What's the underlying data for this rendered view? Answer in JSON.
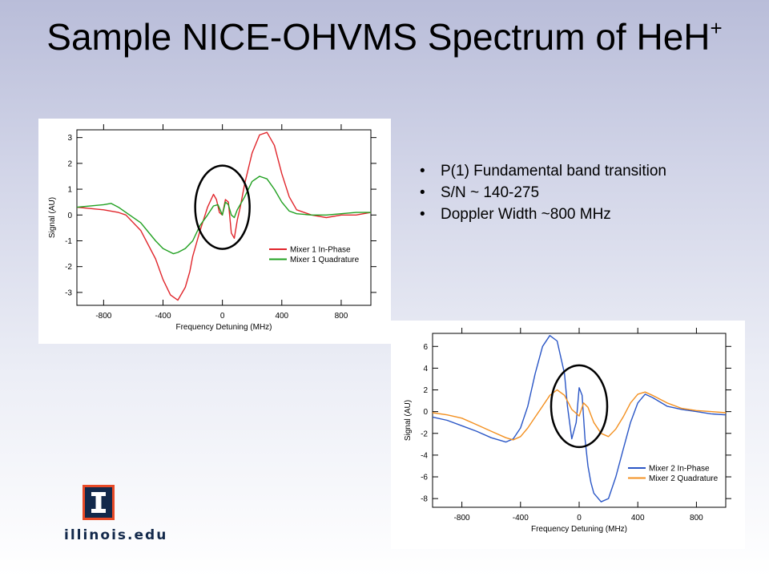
{
  "slide": {
    "title_main": "Sample NICE-OHVMS Spectrum of HeH",
    "title_sup": "+",
    "bullets": [
      "P(1) Fundamental band transition",
      "S/N ~ 140-275",
      "Doppler Width ~800 MHz"
    ],
    "logo_text": "illinois.edu",
    "logo_icon": "block-i-logo"
  },
  "chart_data": [
    {
      "type": "line",
      "xlabel": "Frequency Detuning (MHz)",
      "ylabel": "Signal (AU)",
      "xlim": [
        -980,
        1000
      ],
      "ylim": [
        -3.5,
        3.3
      ],
      "xticks": [
        -800,
        -400,
        0,
        400,
        800
      ],
      "yticks": [
        -3,
        -2,
        -1,
        0,
        1,
        2,
        3
      ],
      "legend_position": "bottom-right",
      "annotation": "circle-around-center-feature",
      "series": [
        {
          "name": "Mixer 1 In-Phase",
          "color": "#e0252b",
          "x": [
            -980,
            -800,
            -700,
            -650,
            -550,
            -450,
            -400,
            -350,
            -300,
            -250,
            -220,
            -200,
            -150,
            -100,
            -60,
            -40,
            -20,
            0,
            20,
            40,
            60,
            80,
            100,
            120,
            150,
            200,
            250,
            300,
            350,
            400,
            450,
            500,
            600,
            700,
            800,
            900,
            1000
          ],
          "y": [
            0.3,
            0.2,
            0.1,
            0.0,
            -0.6,
            -1.7,
            -2.5,
            -3.1,
            -3.3,
            -2.8,
            -2.2,
            -1.6,
            -0.6,
            0.3,
            0.8,
            0.6,
            0.1,
            0.0,
            0.6,
            0.5,
            -0.7,
            -0.9,
            -0.2,
            0.3,
            1.2,
            2.4,
            3.1,
            3.2,
            2.7,
            1.6,
            0.7,
            0.2,
            0.0,
            -0.1,
            0.0,
            0.0,
            0.1
          ]
        },
        {
          "name": "Mixer 1 Quadrature",
          "color": "#20a020",
          "x": [
            -980,
            -800,
            -750,
            -700,
            -650,
            -550,
            -450,
            -400,
            -330,
            -300,
            -250,
            -200,
            -150,
            -100,
            -60,
            -30,
            0,
            20,
            40,
            60,
            80,
            100,
            150,
            200,
            250,
            300,
            350,
            400,
            450,
            500,
            600,
            700,
            800,
            900,
            1000
          ],
          "y": [
            0.3,
            0.4,
            0.45,
            0.3,
            0.1,
            -0.3,
            -1.0,
            -1.3,
            -1.5,
            -1.45,
            -1.3,
            -1.0,
            -0.4,
            0.0,
            0.35,
            0.4,
            0.0,
            0.5,
            0.4,
            0.0,
            -0.1,
            0.2,
            0.7,
            1.3,
            1.5,
            1.4,
            1.0,
            0.5,
            0.15,
            0.05,
            0.0,
            0.0,
            0.05,
            0.1,
            0.1
          ]
        }
      ]
    },
    {
      "type": "line",
      "xlabel": "Frequency Detuning (MHz)",
      "ylabel": "Signal (AU)",
      "xlim": [
        -1000,
        1000
      ],
      "ylim": [
        -8.8,
        7.2
      ],
      "xticks": [
        -800,
        -400,
        0,
        400,
        800
      ],
      "yticks": [
        -8,
        -6,
        -4,
        -2,
        0,
        2,
        4,
        6
      ],
      "legend_position": "bottom-right",
      "annotation": "circle-around-center-feature",
      "series": [
        {
          "name": "Mixer 2 In-Phase",
          "color": "#2a56c6",
          "x": [
            -1000,
            -900,
            -800,
            -700,
            -600,
            -500,
            -450,
            -400,
            -350,
            -300,
            -250,
            -200,
            -150,
            -100,
            -80,
            -50,
            -20,
            0,
            20,
            40,
            60,
            80,
            100,
            150,
            200,
            250,
            300,
            350,
            400,
            450,
            500,
            600,
            700,
            800,
            900,
            1000
          ],
          "y": [
            -0.5,
            -0.8,
            -1.3,
            -1.8,
            -2.4,
            -2.8,
            -2.5,
            -1.5,
            0.5,
            3.5,
            6.0,
            7.0,
            6.5,
            3.5,
            0.5,
            -2.5,
            -1.0,
            2.2,
            1.5,
            -2.5,
            -5.0,
            -6.5,
            -7.5,
            -8.3,
            -8.0,
            -6.0,
            -3.5,
            -1.0,
            0.8,
            1.6,
            1.3,
            0.5,
            0.2,
            0.0,
            -0.2,
            -0.3
          ]
        },
        {
          "name": "Mixer 2 Quadrature",
          "color": "#f39020",
          "x": [
            -1000,
            -900,
            -800,
            -700,
            -600,
            -500,
            -450,
            -400,
            -350,
            -300,
            -250,
            -200,
            -150,
            -100,
            -50,
            0,
            30,
            60,
            100,
            150,
            200,
            250,
            300,
            350,
            400,
            450,
            500,
            600,
            700,
            800,
            900,
            1000
          ],
          "y": [
            -0.1,
            -0.3,
            -0.6,
            -1.2,
            -1.8,
            -2.4,
            -2.6,
            -2.3,
            -1.5,
            -0.5,
            0.5,
            1.5,
            2.0,
            1.5,
            0.2,
            -0.4,
            0.8,
            0.4,
            -1.0,
            -2.0,
            -2.3,
            -1.6,
            -0.5,
            0.8,
            1.6,
            1.8,
            1.5,
            0.8,
            0.3,
            0.1,
            0.0,
            -0.1
          ]
        }
      ]
    }
  ]
}
